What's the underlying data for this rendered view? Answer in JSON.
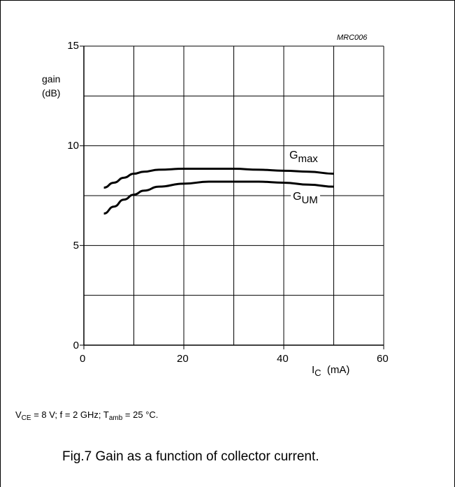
{
  "figure": {
    "ref": "MRC006",
    "conditions": {
      "vce_sym": "V",
      "vce_sub": "CE",
      "vce_rest": " = 8 V; f = 2 GHz; T",
      "tamb_sub": "amb",
      "tamb_rest": " = 25 °C."
    },
    "caption": "Fig.7  Gain as a function of collector current."
  },
  "chart_data": {
    "type": "line",
    "title": "",
    "ylabel_line1": "gain",
    "ylabel_line2": "(dB)",
    "xlabel_sym": "I",
    "xlabel_sub": "C",
    "xlabel_unit": "(mA)",
    "xlim": [
      0,
      60
    ],
    "ylim": [
      0,
      15
    ],
    "xticks": [
      "0",
      "20",
      "40",
      "60"
    ],
    "yticks": [
      "0",
      "5",
      "10",
      "15"
    ],
    "grid": true,
    "series": [
      {
        "name_sym": "G",
        "name_sub": "max",
        "x": [
          4,
          6,
          8,
          10,
          12,
          15,
          20,
          25,
          30,
          35,
          40,
          45,
          50
        ],
        "values": [
          7.9,
          8.15,
          8.4,
          8.6,
          8.7,
          8.8,
          8.85,
          8.85,
          8.85,
          8.8,
          8.75,
          8.7,
          8.6
        ]
      },
      {
        "name_sym": "G",
        "name_sub": "UM",
        "x": [
          4,
          6,
          8,
          10,
          12,
          15,
          20,
          25,
          30,
          35,
          40,
          45,
          50
        ],
        "values": [
          6.6,
          6.95,
          7.3,
          7.55,
          7.75,
          7.95,
          8.1,
          8.2,
          8.2,
          8.2,
          8.15,
          8.05,
          7.95
        ]
      }
    ]
  }
}
